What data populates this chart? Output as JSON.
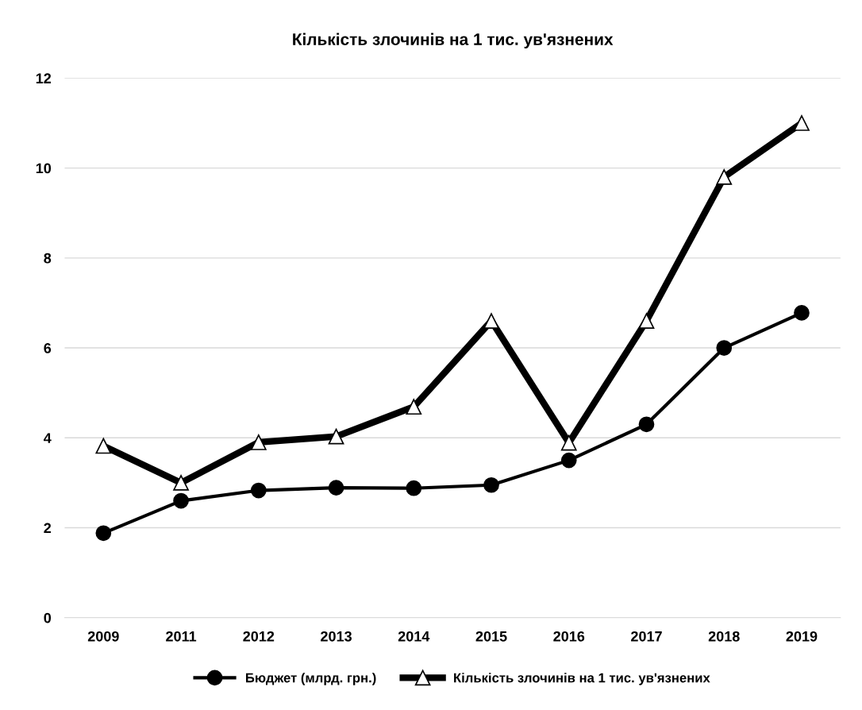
{
  "chart_data": {
    "type": "line",
    "title": "Кількість злочинів на 1 тис. ув'язнених",
    "categories": [
      "2009",
      "2011",
      "2012",
      "2013",
      "2014",
      "2015",
      "2016",
      "2017",
      "2018",
      "2019"
    ],
    "series": [
      {
        "name": "Бюджет (млрд. грн.)",
        "color": "#000000",
        "marker": "circle",
        "values": [
          1.88,
          2.6,
          2.83,
          2.89,
          2.88,
          2.95,
          3.5,
          4.3,
          6.0,
          6.78
        ]
      },
      {
        "name": "Кількість злочинів на 1 тис. ув'язнених",
        "color": "#000000",
        "marker": "triangle",
        "values": [
          3.82,
          3.0,
          3.9,
          4.03,
          4.69,
          6.6,
          3.89,
          6.6,
          9.8,
          11.0
        ]
      }
    ],
    "ylim": [
      0,
      12
    ],
    "yticks": [
      0,
      2,
      4,
      6,
      8,
      10,
      12
    ],
    "grid": "y",
    "legend": "bottom"
  }
}
